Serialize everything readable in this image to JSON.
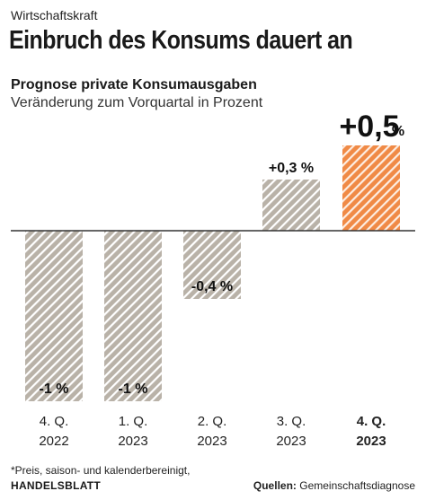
{
  "kicker": "Wirtschaftskraft",
  "headline": "Einbruch des Konsums dauert an",
  "footnote": "*Preis, saison- und kalenderbereinigt,",
  "brand": "HANDELSBLATT",
  "source_label": "Quellen:",
  "source_value": "Gemeinschaftsdiagnose",
  "colors": {
    "bar_gray": "#b9b2a8",
    "bar_highlight": "#f08a46",
    "stripe": "#ffffff"
  },
  "chart_data": {
    "type": "bar",
    "title": "Prognose private Konsumausgaben",
    "subtitle": "Veränderung zum Vorquartal in Prozent",
    "categories": [
      {
        "quarter": "4. Q.",
        "year": "2022"
      },
      {
        "quarter": "1. Q.",
        "year": "2023"
      },
      {
        "quarter": "2. Q.",
        "year": "2023"
      },
      {
        "quarter": "3. Q.",
        "year": "2023"
      },
      {
        "quarter": "4. Q.",
        "year": "2023"
      }
    ],
    "values": [
      -1,
      -1,
      -0.4,
      0.3,
      0.5
    ],
    "value_labels": [
      "-1 %",
      "-1 %",
      "-0,4 %",
      "+0,3 %",
      "+0,5"
    ],
    "highlight_index": 4,
    "highlight_unit": "%",
    "ylim": [
      -1,
      0.5
    ],
    "grid": false
  }
}
